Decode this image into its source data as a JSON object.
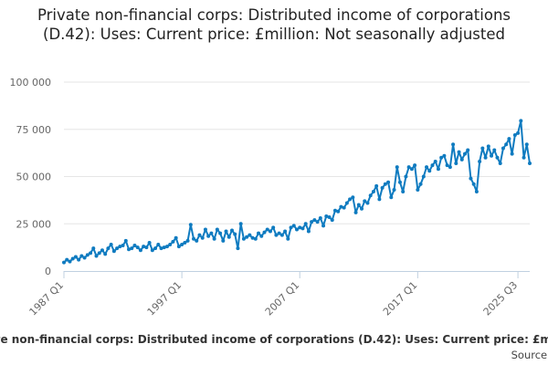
{
  "chart_data": {
    "type": "line",
    "title": "Private non-financial corps: Distributed income of corporations (D.42): Uses: Current price: £million: Not seasonally adjusted",
    "xlabel": "",
    "ylabel": "",
    "ylim": [
      0,
      100000
    ],
    "y_ticks": [
      {
        "value": 0,
        "label": "0"
      },
      {
        "value": 25000,
        "label": "25 000"
      },
      {
        "value": 50000,
        "label": "50 000"
      },
      {
        "value": 75000,
        "label": "75 000"
      },
      {
        "value": 100000,
        "label": "100 000"
      }
    ],
    "x_ticks": [
      {
        "index": 0,
        "label": "1987 Q1"
      },
      {
        "index": 40,
        "label": "1997 Q1"
      },
      {
        "index": 80,
        "label": "2007 Q1"
      },
      {
        "index": 120,
        "label": "2017 Q1"
      },
      {
        "index": 154,
        "label": "2025 Q3"
      }
    ],
    "grid": true,
    "legend_position": "bottom",
    "series": [
      {
        "name": "Private non-financial corps: Distributed income of corporations (D.42): Uses: Current price: £million: Not seasonally adjusted",
        "color": "#0f7bc0",
        "start": "1987 Q1",
        "values": [
          4500,
          6000,
          5000,
          6500,
          7500,
          6000,
          8000,
          7000,
          8500,
          9500,
          12000,
          8000,
          9500,
          11000,
          9000,
          12000,
          14000,
          10500,
          12000,
          13000,
          13500,
          16000,
          11500,
          12000,
          13500,
          12500,
          11000,
          13000,
          12500,
          15000,
          11000,
          12000,
          14000,
          12000,
          12500,
          13000,
          14000,
          15500,
          17500,
          13000,
          14000,
          15000,
          16000,
          24500,
          17000,
          16000,
          19000,
          17500,
          22000,
          18500,
          20000,
          17000,
          22000,
          20000,
          16000,
          21000,
          18000,
          21500,
          19500,
          12000,
          25000,
          17000,
          18000,
          19000,
          17500,
          17000,
          20000,
          18500,
          20500,
          22000,
          21000,
          23000,
          19000,
          20000,
          19000,
          21000,
          17000,
          23000,
          24000,
          22000,
          23000,
          22500,
          25000,
          21000,
          26000,
          27000,
          26000,
          28000,
          24000,
          29000,
          28500,
          27000,
          32000,
          31500,
          34000,
          33500,
          36000,
          38000,
          39000,
          31000,
          35000,
          33000,
          37000,
          36000,
          40000,
          42000,
          45000,
          38000,
          44000,
          46000,
          47000,
          39000,
          43000,
          55000,
          47000,
          42000,
          50000,
          55000,
          54000,
          56000,
          43000,
          46000,
          50000,
          55000,
          53000,
          56000,
          58000,
          54000,
          60000,
          61000,
          56000,
          55000,
          67000,
          57000,
          63000,
          59000,
          62000,
          64000,
          49000,
          46000,
          42000,
          58000,
          65000,
          60000,
          66000,
          61000,
          64000,
          60000,
          57000,
          65000,
          67000,
          70000,
          62000,
          72000,
          73000,
          79500,
          60000,
          67000,
          57000
        ]
      }
    ]
  },
  "legend": {
    "label": "Private non-financial corps: Distributed income of corporations (D.42): Uses: Current price: £million: Not seasonally adjusted"
  },
  "source": {
    "label": "Source:"
  }
}
